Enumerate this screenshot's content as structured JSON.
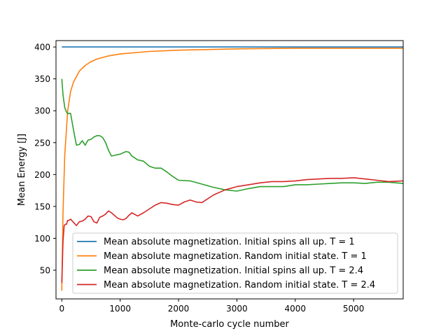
{
  "chart_data": {
    "type": "line",
    "title": "",
    "xlabel": "Monte-carlo cycle number",
    "ylabel": "Mean Energy [J]",
    "xlim": [
      -100,
      5850
    ],
    "ylim": [
      5,
      410
    ],
    "xticks": [
      0,
      1000,
      2000,
      3000,
      4000,
      5000
    ],
    "yticks": [
      50,
      100,
      150,
      200,
      250,
      300,
      350,
      400
    ],
    "legend_placement": "lower-right",
    "grid": false,
    "series": [
      {
        "name": "Mean absolute magnetization. Initial spins all up. T = 1",
        "color": "#1f77b4",
        "x": [
          0,
          5850
        ],
        "y": [
          400,
          400
        ]
      },
      {
        "name": "Mean absolute magnetization. Random initial state. T = 1",
        "color": "#ff7f0e",
        "x": [
          0,
          20,
          50,
          100,
          150,
          200,
          300,
          400,
          500,
          600,
          800,
          1000,
          1500,
          2000,
          3000,
          4000,
          5000,
          5850
        ],
        "y": [
          18,
          140,
          230,
          300,
          330,
          345,
          362,
          371,
          377,
          381,
          386,
          389,
          393,
          395,
          397,
          398,
          398,
          398
        ]
      },
      {
        "name": "Mean absolute magnetization. Initial spins all up. T = 2.4",
        "color": "#2ca02c",
        "x": [
          0,
          20,
          50,
          80,
          100,
          120,
          150,
          200,
          250,
          300,
          350,
          400,
          450,
          500,
          550,
          600,
          650,
          700,
          750,
          800,
          850,
          900,
          1000,
          1100,
          1150,
          1200,
          1300,
          1400,
          1500,
          1600,
          1700,
          1800,
          1900,
          2000,
          2200,
          2400,
          2600,
          2800,
          3000,
          3200,
          3400,
          3600,
          3800,
          4000,
          4200,
          4400,
          4600,
          4800,
          5000,
          5200,
          5400,
          5600,
          5850
        ],
        "y": [
          350,
          325,
          305,
          298,
          295,
          296,
          296,
          270,
          246,
          247,
          253,
          246,
          254,
          255,
          259,
          261,
          261,
          258,
          250,
          238,
          229,
          230,
          232,
          236,
          235,
          229,
          223,
          221,
          213,
          210,
          210,
          204,
          197,
          191,
          190,
          185,
          180,
          176,
          174,
          178,
          181,
          181,
          181,
          184,
          184,
          185,
          186,
          187,
          187,
          186,
          188,
          188,
          186
        ]
      },
      {
        "name": "Mean absolute magnetization. Random initial state. T = 2.4",
        "color": "#d62728",
        "x": [
          0,
          20,
          40,
          60,
          80,
          100,
          120,
          150,
          200,
          250,
          300,
          350,
          400,
          450,
          500,
          550,
          600,
          650,
          700,
          750,
          800,
          850,
          900,
          950,
          1000,
          1050,
          1100,
          1150,
          1200,
          1300,
          1400,
          1500,
          1600,
          1700,
          1800,
          1900,
          2000,
          2100,
          2200,
          2300,
          2400,
          2600,
          2800,
          3000,
          3200,
          3400,
          3600,
          3800,
          4000,
          4200,
          4400,
          4600,
          4800,
          5000,
          5200,
          5400,
          5600,
          5850
        ],
        "y": [
          30,
          95,
          120,
          122,
          122,
          128,
          128,
          130,
          125,
          120,
          126,
          127,
          130,
          135,
          134,
          126,
          124,
          133,
          135,
          138,
          143,
          140,
          136,
          132,
          130,
          129,
          131,
          136,
          140,
          135,
          140,
          146,
          152,
          156,
          155,
          153,
          152,
          157,
          160,
          157,
          156,
          168,
          176,
          181,
          184,
          187,
          189,
          189,
          190,
          192,
          193,
          194,
          194,
          195,
          193,
          191,
          189,
          190
        ]
      }
    ]
  }
}
